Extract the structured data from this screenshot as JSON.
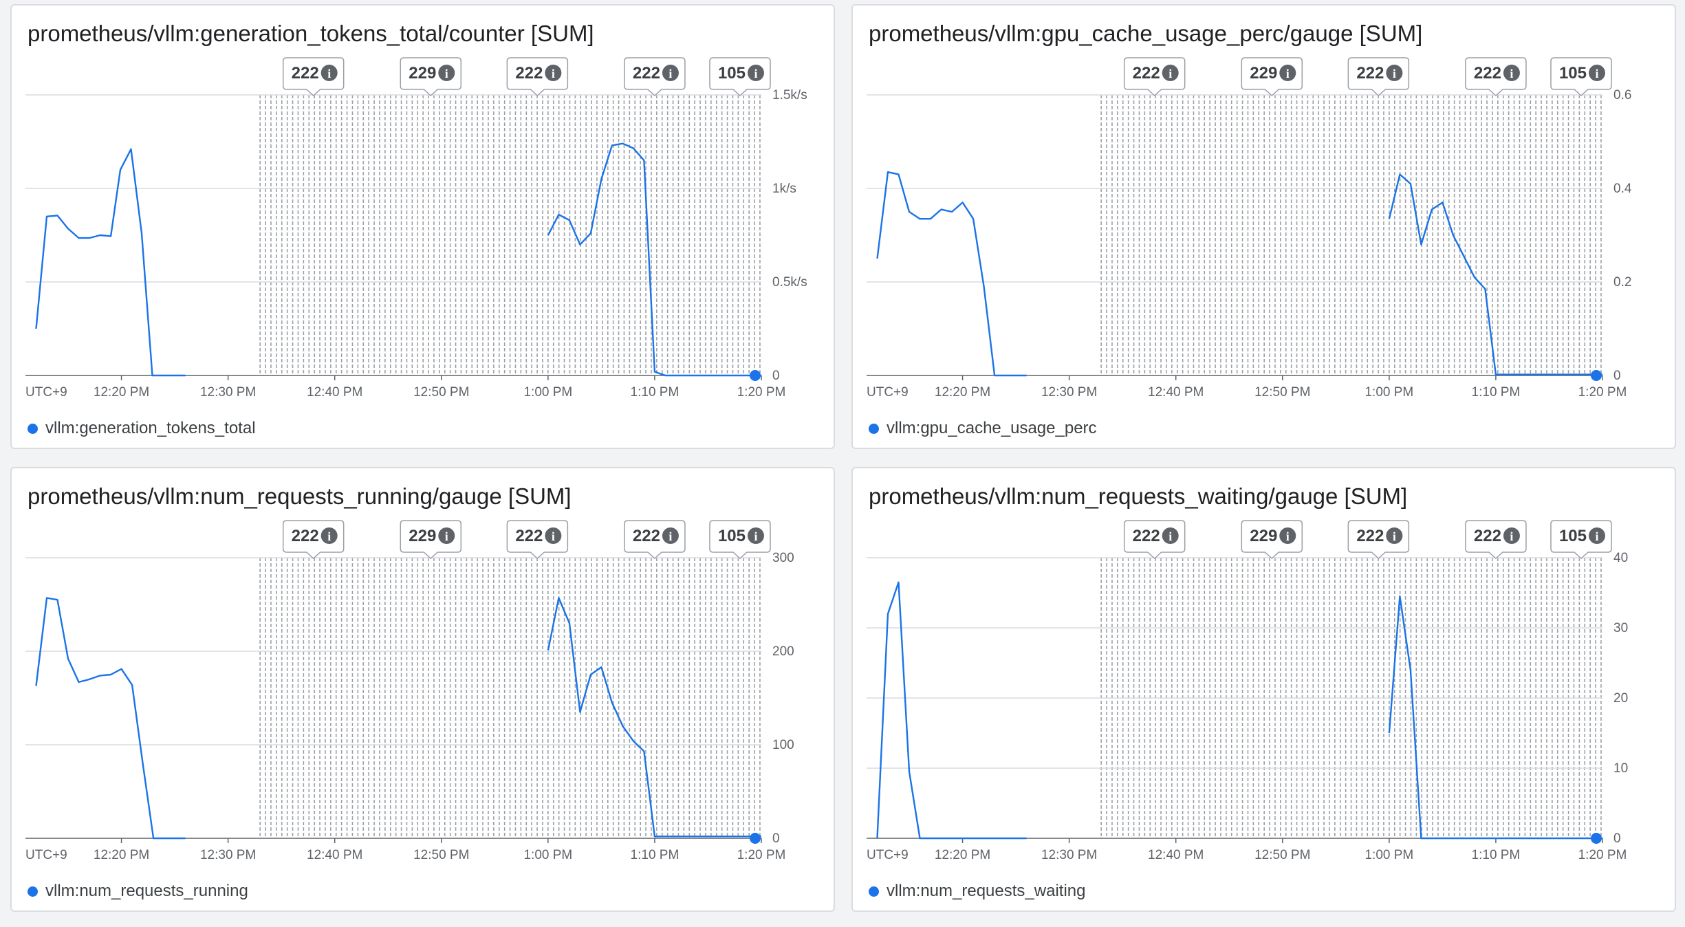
{
  "colors": {
    "series": "#1a73e8",
    "grid": "#dadce0",
    "axis": "#5f6368",
    "hatch": "#9aa0a6",
    "background": "#f1f3f4",
    "card": "#ffffff"
  },
  "timezone_label": "UTC+9",
  "annotations": [
    {
      "count": "222",
      "icon": "info-icon",
      "time": "12:38"
    },
    {
      "count": "229",
      "icon": "info-icon",
      "time": "12:49"
    },
    {
      "count": "222",
      "icon": "info-icon",
      "time": "12:59"
    },
    {
      "count": "222",
      "icon": "info-icon",
      "time": "13:10"
    },
    {
      "count": "105",
      "icon": "info-icon",
      "time": "13:18"
    }
  ],
  "shaded_region": {
    "from": "12:33",
    "to": "13:20"
  },
  "x_ticks": [
    "12:20 PM",
    "12:30 PM",
    "12:40 PM",
    "12:50 PM",
    "1:00 PM",
    "1:10 PM",
    "1:20 PM"
  ],
  "charts": [
    {
      "title": "prometheus/vllm:generation_tokens_total/counter [SUM]",
      "legend": "vllm:generation_tokens_total",
      "chart_data": {
        "type": "line",
        "x_unit": "time (UTC+9)",
        "xlim": [
          "12:11",
          "13:20"
        ],
        "ylim": [
          0,
          1500
        ],
        "y_ticks": [
          {
            "value": 0,
            "label": "0"
          },
          {
            "value": 500,
            "label": "0.5k/s"
          },
          {
            "value": 1000,
            "label": "1k/s"
          },
          {
            "value": 1500,
            "label": "1.5k/s"
          }
        ],
        "series": [
          {
            "name": "vllm:generation_tokens_total",
            "segments": [
              [
                [
                  "12:12",
                  250
                ],
                [
                  "12:13",
                  850
                ],
                [
                  "12:14",
                  855
                ],
                [
                  "12:15",
                  785
                ],
                [
                  "12:16",
                  735
                ],
                [
                  "12:17",
                  735
                ],
                [
                  "12:18",
                  750
                ],
                [
                  "12:19",
                  745
                ],
                [
                  "12:19.9",
                  1100
                ],
                [
                  "12:20.9",
                  1210
                ],
                [
                  "12:21.9",
                  760
                ],
                [
                  "12:22.9",
                  0
                ],
                [
                  "12:26",
                  0
                ]
              ],
              [
                [
                  "13:00",
                  750
                ],
                [
                  "13:01",
                  860
                ],
                [
                  "13:02",
                  830
                ],
                [
                  "13:03",
                  700
                ],
                [
                  "13:04",
                  760
                ],
                [
                  "13:05",
                  1050
                ],
                [
                  "13:06",
                  1230
                ],
                [
                  "13:07",
                  1240
                ],
                [
                  "13:08",
                  1215
                ],
                [
                  "13:09",
                  1150
                ],
                [
                  "13:10",
                  20
                ],
                [
                  "13:11",
                  0
                ],
                [
                  "13:20",
                  0
                ]
              ]
            ]
          }
        ]
      }
    },
    {
      "title": "prometheus/vllm:gpu_cache_usage_perc/gauge [SUM]",
      "legend": "vllm:gpu_cache_usage_perc",
      "chart_data": {
        "type": "line",
        "x_unit": "time (UTC+9)",
        "xlim": [
          "12:11",
          "13:20"
        ],
        "ylim": [
          0,
          0.6
        ],
        "y_ticks": [
          {
            "value": 0,
            "label": "0"
          },
          {
            "value": 0.2,
            "label": "0.2"
          },
          {
            "value": 0.4,
            "label": "0.4"
          },
          {
            "value": 0.6,
            "label": "0.6"
          }
        ],
        "series": [
          {
            "name": "vllm:gpu_cache_usage_perc",
            "segments": [
              [
                [
                  "12:12",
                  0.25
                ],
                [
                  "12:13",
                  0.435
                ],
                [
                  "12:14",
                  0.43
                ],
                [
                  "12:15",
                  0.35
                ],
                [
                  "12:16",
                  0.335
                ],
                [
                  "12:17",
                  0.335
                ],
                [
                  "12:18",
                  0.355
                ],
                [
                  "12:19",
                  0.35
                ],
                [
                  "12:20",
                  0.37
                ],
                [
                  "12:21",
                  0.335
                ],
                [
                  "12:22",
                  0.19
                ],
                [
                  "12:23",
                  0
                ],
                [
                  "12:26",
                  0
                ]
              ],
              [
                [
                  "13:00",
                  0.335
                ],
                [
                  "13:01",
                  0.43
                ],
                [
                  "13:02",
                  0.41
                ],
                [
                  "13:03",
                  0.28
                ],
                [
                  "13:04",
                  0.355
                ],
                [
                  "13:05",
                  0.37
                ],
                [
                  "13:06",
                  0.3
                ],
                [
                  "13:07",
                  0.255
                ],
                [
                  "13:08",
                  0.21
                ],
                [
                  "13:09",
                  0.185
                ],
                [
                  "13:10",
                  0.002
                ],
                [
                  "13:20",
                  0.002
                ]
              ]
            ]
          }
        ]
      }
    },
    {
      "title": "prometheus/vllm:num_requests_running/gauge [SUM]",
      "legend": "vllm:num_requests_running",
      "chart_data": {
        "type": "line",
        "x_unit": "time (UTC+9)",
        "xlim": [
          "12:11",
          "13:20"
        ],
        "ylim": [
          0,
          300
        ],
        "y_ticks": [
          {
            "value": 0,
            "label": "0"
          },
          {
            "value": 100,
            "label": "100"
          },
          {
            "value": 200,
            "label": "200"
          },
          {
            "value": 300,
            "label": "300"
          }
        ],
        "series": [
          {
            "name": "vllm:num_requests_running",
            "segments": [
              [
                [
                  "12:12",
                  163
                ],
                [
                  "12:13",
                  257
                ],
                [
                  "12:14",
                  255
                ],
                [
                  "12:15",
                  192
                ],
                [
                  "12:16",
                  167
                ],
                [
                  "12:17",
                  170
                ],
                [
                  "12:18",
                  174
                ],
                [
                  "12:19",
                  175
                ],
                [
                  "12:20",
                  181
                ],
                [
                  "12:21",
                  164
                ],
                [
                  "12:22",
                  80
                ],
                [
                  "12:23",
                  0
                ],
                [
                  "12:26",
                  0
                ]
              ],
              [
                [
                  "13:00",
                  201
                ],
                [
                  "13:01",
                  257
                ],
                [
                  "13:02",
                  230
                ],
                [
                  "13:03",
                  135
                ],
                [
                  "13:04",
                  175
                ],
                [
                  "13:05",
                  183
                ],
                [
                  "13:06",
                  145
                ],
                [
                  "13:07",
                  120
                ],
                [
                  "13:08",
                  104
                ],
                [
                  "13:09",
                  93
                ],
                [
                  "13:10",
                  2
                ],
                [
                  "13:20",
                  2
                ]
              ]
            ]
          }
        ]
      }
    },
    {
      "title": "prometheus/vllm:num_requests_waiting/gauge [SUM]",
      "legend": "vllm:num_requests_waiting",
      "chart_data": {
        "type": "line",
        "x_unit": "time (UTC+9)",
        "xlim": [
          "12:11",
          "13:20"
        ],
        "ylim": [
          0,
          40
        ],
        "y_ticks": [
          {
            "value": 0,
            "label": "0"
          },
          {
            "value": 10,
            "label": "10"
          },
          {
            "value": 20,
            "label": "20"
          },
          {
            "value": 30,
            "label": "30"
          },
          {
            "value": 40,
            "label": "40"
          }
        ],
        "series": [
          {
            "name": "vllm:num_requests_waiting",
            "segments": [
              [
                [
                  "12:12",
                  0
                ],
                [
                  "12:13",
                  32
                ],
                [
                  "12:14",
                  36.5
                ],
                [
                  "12:15",
                  9.5
                ],
                [
                  "12:16",
                  0
                ],
                [
                  "12:26",
                  0
                ]
              ],
              [
                [
                  "13:00",
                  15
                ],
                [
                  "13:01",
                  34.5
                ],
                [
                  "13:02",
                  24
                ],
                [
                  "13:03",
                  0
                ],
                [
                  "13:20",
                  0
                ]
              ]
            ]
          }
        ]
      }
    }
  ]
}
